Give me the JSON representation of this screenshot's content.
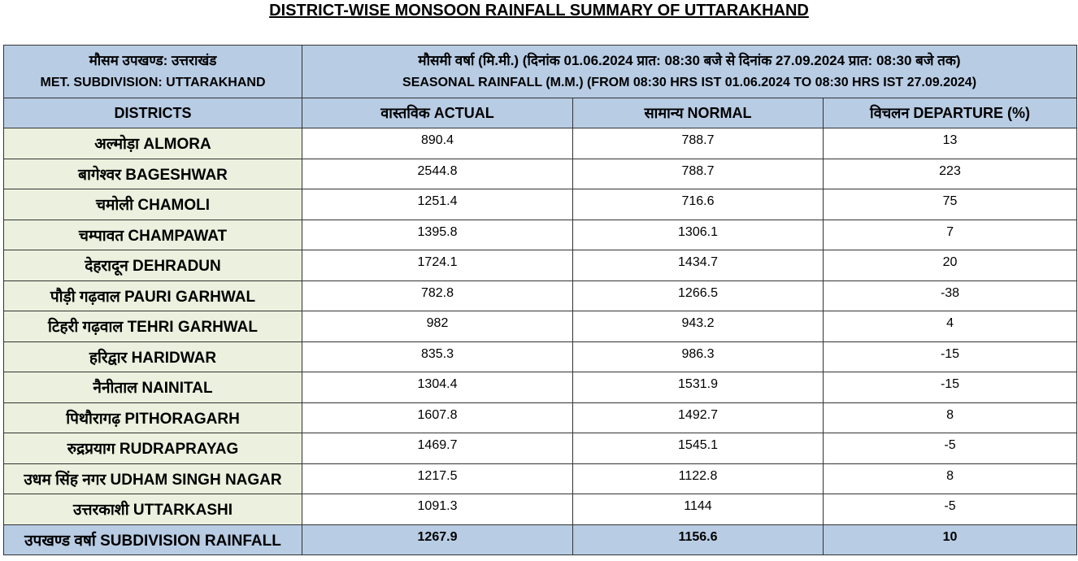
{
  "title": "DISTRICT-WISE MONSOON RAINFALL SUMMARY OF UTTARAKHAND",
  "header": {
    "subdivision_hindi": "मौसम उपखण्ड: उत्तराखंड",
    "subdivision_english": "MET. SUBDIVISION: UTTARAKHAND",
    "seasonal_hindi": "मौसमी वर्षा (मि.मी.) (दिनांक 01.06.2024 प्रात: 08:30 बजे से दिनांक 27.09.2024 प्रात: 08:30 बजे तक)",
    "seasonal_english": "SEASONAL RAINFALL (M.M.) (FROM 08:30 HRS IST 01.06.2024 TO 08:30 HRS IST 27.09.2024)"
  },
  "columns": {
    "districts": "DISTRICTS",
    "actual": "वास्तविक ACTUAL",
    "normal": "सामान्य NORMAL",
    "departure": "विचलन DEPARTURE (%)"
  },
  "rows": [
    {
      "district": "अल्मोड़ा ALMORA",
      "actual": "890.4",
      "normal": "788.7",
      "departure": "13"
    },
    {
      "district": "बागेश्वर BAGESHWAR",
      "actual": "2544.8",
      "normal": "788.7",
      "departure": "223"
    },
    {
      "district": "चमोली CHAMOLI",
      "actual": "1251.4",
      "normal": "716.6",
      "departure": "75"
    },
    {
      "district": "चम्पावत CHAMPAWAT",
      "actual": "1395.8",
      "normal": "1306.1",
      "departure": "7"
    },
    {
      "district": "देहरादून DEHRADUN",
      "actual": "1724.1",
      "normal": "1434.7",
      "departure": "20"
    },
    {
      "district": "पौड़ी गढ़वाल PAURI GARHWAL",
      "actual": "782.8",
      "normal": "1266.5",
      "departure": "-38"
    },
    {
      "district": "टिहरी गढ़वाल TEHRI GARHWAL",
      "actual": "982",
      "normal": "943.2",
      "departure": "4"
    },
    {
      "district": "हरिद्वार HARIDWAR",
      "actual": "835.3",
      "normal": "986.3",
      "departure": "-15"
    },
    {
      "district": "नैनीताल NAINITAL",
      "actual": "1304.4",
      "normal": "1531.9",
      "departure": "-15"
    },
    {
      "district": "पिथौरागढ़ PITHORAGARH",
      "actual": "1607.8",
      "normal": "1492.7",
      "departure": "8"
    },
    {
      "district": "रुद्रप्रयाग RUDRAPRAYAG",
      "actual": "1469.7",
      "normal": "1545.1",
      "departure": "-5"
    },
    {
      "district": "उधम सिंह नगर UDHAM SINGH NAGAR",
      "actual": "1217.5",
      "normal": "1122.8",
      "departure": "8"
    },
    {
      "district": "उत्तरकाशी UTTARKASHI",
      "actual": "1091.3",
      "normal": "1144",
      "departure": "-5"
    }
  ],
  "total": {
    "label": "उपखण्ड वर्षा SUBDIVISION RAINFALL",
    "actual": "1267.9",
    "normal": "1156.6",
    "departure": "10"
  },
  "colors": {
    "header_fill": "#b8cce4",
    "district_fill": "#ebf1de",
    "border": "#333333"
  }
}
